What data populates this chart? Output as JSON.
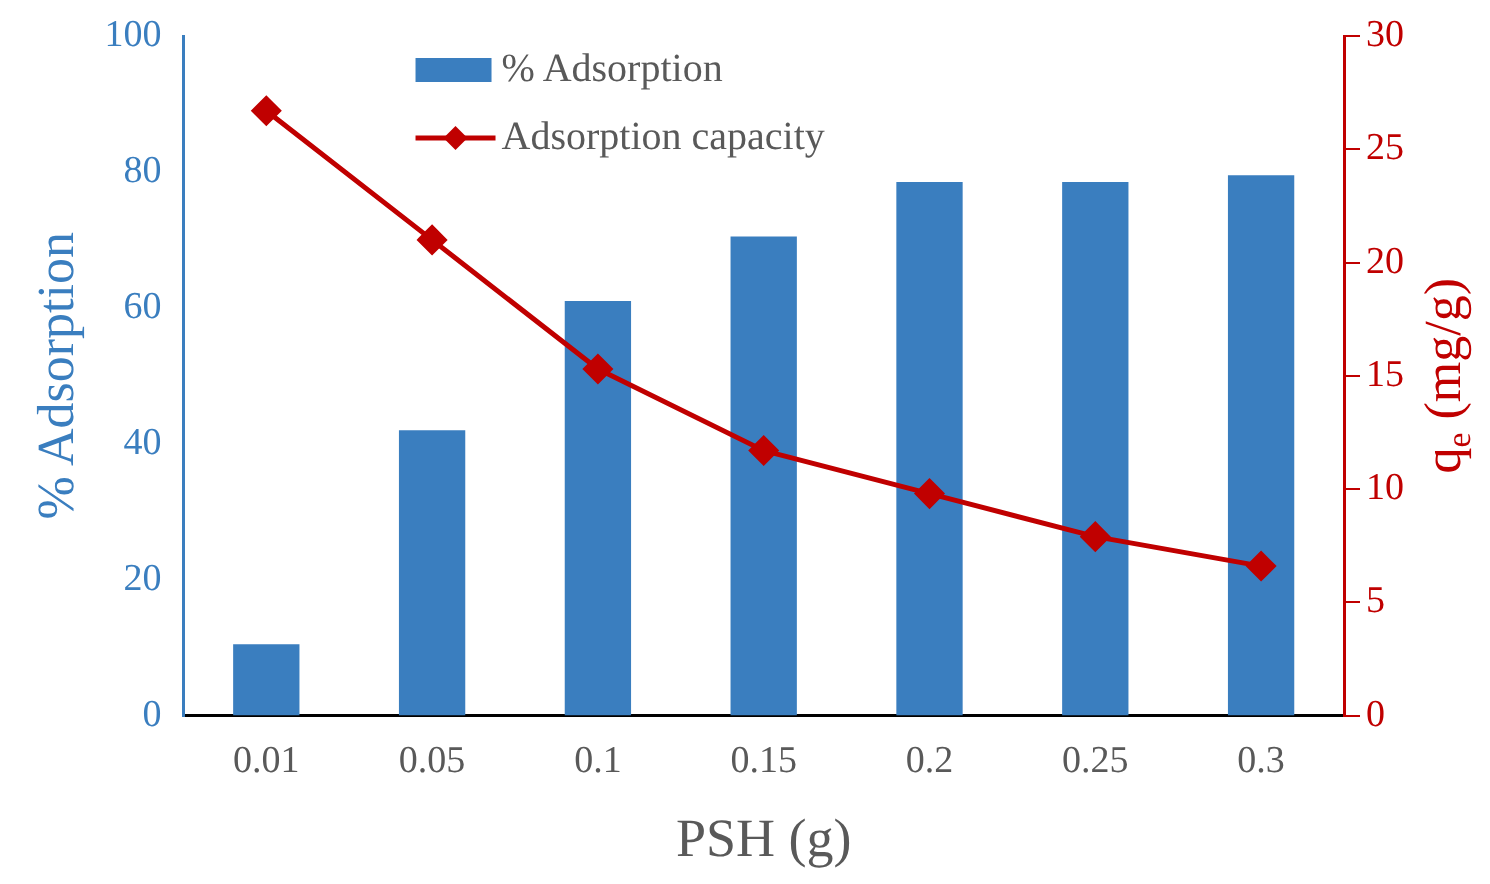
{
  "chart_data": {
    "type": "bar",
    "xlabel": "PSH (g)",
    "ylabel": "% Adsorption",
    "y2label": "q$_{e}$ (mg/g)",
    "categories": [
      "0.01",
      "0.05",
      "0.1",
      "0.15",
      "0.2",
      "0.25",
      "0.3"
    ],
    "series": [
      {
        "name": "% Adsorption",
        "color": "#3a7ebf",
        "values": [
          10.5,
          42,
          61,
          70.5,
          78.5,
          78.5,
          79.5
        ]
      },
      {
        "name": "Adsorption capacity",
        "type": "line",
        "axis": "y2",
        "color": "#c00000",
        "values": [
          26.7,
          21.0,
          15.3,
          11.7,
          9.8,
          7.9,
          6.6
        ]
      }
    ],
    "ylim": [
      0,
      100
    ],
    "yticks": [
      0,
      20,
      40,
      60,
      80,
      100
    ],
    "y2lim": [
      0,
      30
    ],
    "y2ticks": [
      0,
      5,
      10,
      15,
      20,
      25,
      30
    ],
    "grid": false,
    "legend": "top",
    "marker": "diamond",
    "line_style": "solid"
  }
}
